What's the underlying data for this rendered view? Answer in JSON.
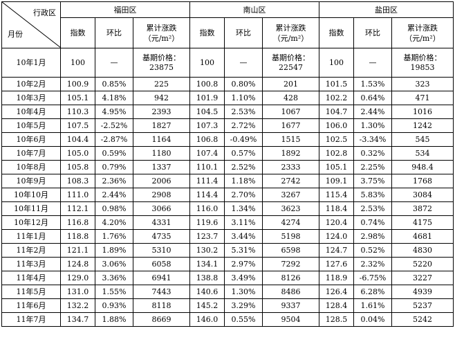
{
  "header": {
    "corner_top": "行政区",
    "corner_bottom": "月份",
    "districts": [
      "福田区",
      "南山区",
      "盐田区"
    ],
    "sub": {
      "index": "指数",
      "mom": "环比",
      "cum_line1": "累计涨跌",
      "cum_line2": "（元/m²）"
    }
  },
  "base_row": {
    "month": "10年1月",
    "cells": [
      {
        "index": "100",
        "mom": "—",
        "cum_line1": "基期价格：",
        "cum_line2": "23875"
      },
      {
        "index": "100",
        "mom": "—",
        "cum_line1": "基期价格：",
        "cum_line2": "22547"
      },
      {
        "index": "100",
        "mom": "—",
        "cum_line1": "基期价格：",
        "cum_line2": "19853"
      }
    ]
  },
  "rows": [
    {
      "month": "10年2月",
      "v": [
        "100.9",
        "0.85%",
        "225",
        "100.8",
        "0.80%",
        "201",
        "101.5",
        "1.53%",
        "323"
      ]
    },
    {
      "month": "10年3月",
      "v": [
        "105.1",
        "4.18%",
        "942",
        "101.9",
        "1.10%",
        "428",
        "102.2",
        "0.64%",
        "471"
      ]
    },
    {
      "month": "10年4月",
      "v": [
        "110.3",
        "4.95%",
        "2393",
        "104.5",
        "2.53%",
        "1067",
        "104.7",
        "2.44%",
        "1016"
      ]
    },
    {
      "month": "10年5月",
      "v": [
        "107.5",
        "-2.52%",
        "1827",
        "107.3",
        "2.72%",
        "1677",
        "106.0",
        "1.30%",
        "1242"
      ]
    },
    {
      "month": "10年6月",
      "v": [
        "104.4",
        "-2.87%",
        "1164",
        "106.8",
        "-0.49%",
        "1515",
        "102.5",
        "-3.34%",
        "545"
      ]
    },
    {
      "month": "10年7月",
      "v": [
        "105.0",
        "0.59%",
        "1180",
        "107.4",
        "0.57%",
        "1892",
        "102.8",
        "0.32%",
        "534"
      ]
    },
    {
      "month": "10年8月",
      "v": [
        "105.8",
        "0.79%",
        "1337",
        "110.1",
        "2.52%",
        "2333",
        "105.1",
        "2.25%",
        "948.4"
      ]
    },
    {
      "month": "10年9月",
      "v": [
        "108.3",
        "2.36%",
        "2006",
        "111.4",
        "1.18%",
        "2742",
        "109.1",
        "3.75%",
        "1768"
      ]
    },
    {
      "month": "10年10月",
      "v": [
        "111.0",
        "2.44%",
        "2908",
        "114.4",
        "2.70%",
        "3267",
        "115.4",
        "5.83%",
        "3084"
      ]
    },
    {
      "month": "10年11月",
      "v": [
        "112.1",
        "0.98%",
        "3066",
        "116.0",
        "1.34%",
        "3623",
        "118.4",
        "2.53%",
        "3872"
      ]
    },
    {
      "month": "10年12月",
      "v": [
        "116.8",
        "4.20%",
        "4331",
        "119.6",
        "3.11%",
        "4274",
        "120.4",
        "0.74%",
        "4175"
      ]
    },
    {
      "month": "11年1月",
      "v": [
        "118.8",
        "1.76%",
        "4735",
        "123.7",
        "3.44%",
        "5198",
        "124.0",
        "2.98%",
        "4681"
      ]
    },
    {
      "month": "11年2月",
      "v": [
        "121.1",
        "1.89%",
        "5310",
        "130.2",
        "5.31%",
        "6598",
        "124.7",
        "0.52%",
        "4830"
      ]
    },
    {
      "month": "11年3月",
      "v": [
        "124.8",
        "3.06%",
        "6058",
        "134.1",
        "2.97%",
        "7292",
        "127.6",
        "2.32%",
        "5220"
      ]
    },
    {
      "month": "11年4月",
      "v": [
        "129.0",
        "3.36%",
        "6941",
        "138.8",
        "3.49%",
        "8126",
        "118.9",
        "-6.75%",
        "3227"
      ]
    },
    {
      "month": "11年5月",
      "v": [
        "131.0",
        "1.55%",
        "7443",
        "140.6",
        "1.30%",
        "8486",
        "126.4",
        "6.28%",
        "4939"
      ]
    },
    {
      "month": "11年6月",
      "v": [
        "132.2",
        "0.93%",
        "8118",
        "145.2",
        "3.29%",
        "9337",
        "128.4",
        "1.61%",
        "5237"
      ]
    },
    {
      "month": "11年7月",
      "v": [
        "134.7",
        "1.88%",
        "8669",
        "146.0",
        "0.55%",
        "9504",
        "128.5",
        "0.04%",
        "5242"
      ]
    }
  ]
}
